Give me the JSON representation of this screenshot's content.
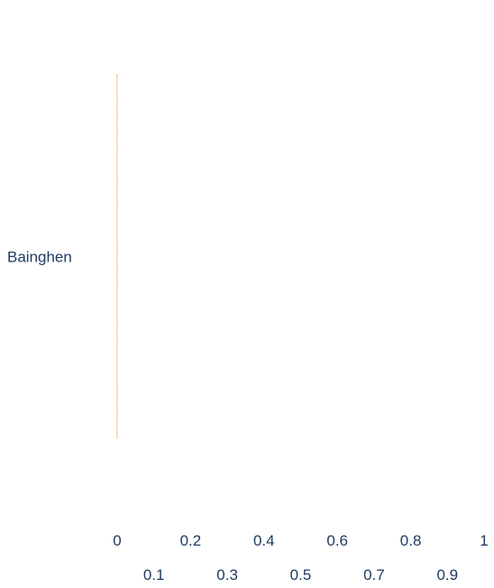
{
  "chart_data": {
    "type": "bar",
    "orientation": "horizontal",
    "categories": [
      "Bainghen"
    ],
    "values": [
      0
    ],
    "x_ticks": [
      0,
      0.1,
      0.2,
      0.3,
      0.4,
      0.5,
      0.6,
      0.7,
      0.8,
      0.9,
      1
    ],
    "x_tick_labels": [
      "0",
      "0.1",
      "0.2",
      "0.3",
      "0.4",
      "0.5",
      "0.6",
      "0.7",
      "0.8",
      "0.9",
      "1"
    ],
    "xlim": [
      0,
      1
    ],
    "grid": false,
    "colors": {
      "bar_line": "#f0b04a",
      "text": "#1f3a63"
    }
  }
}
